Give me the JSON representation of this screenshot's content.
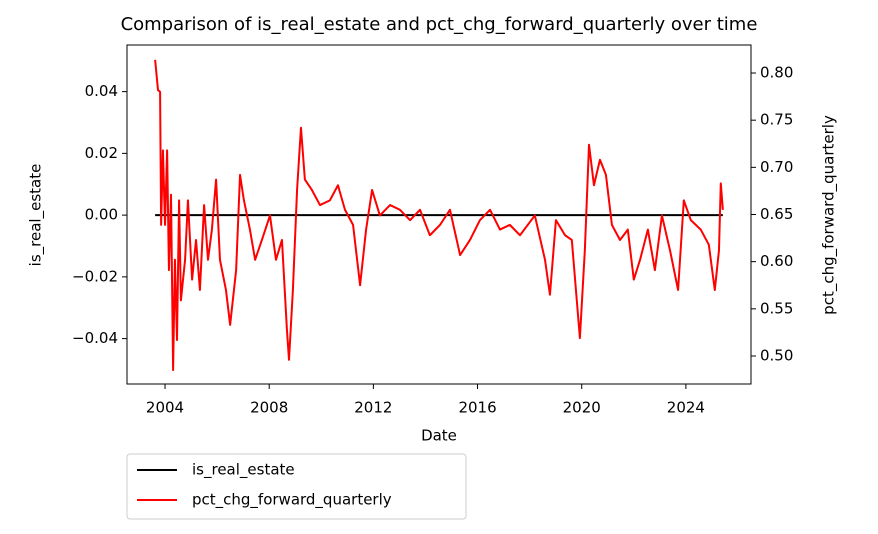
{
  "chart_data": {
    "type": "line",
    "title": "Comparison of is_real_estate and pct_chg_forward_quarterly over time",
    "xlabel": "Date",
    "ylabel": "is_real_estate",
    "y2label": "pct_chg_forward_quarterly",
    "y2label_color": "#ff0000",
    "xlim": [
      2002.54,
      2026.5
    ],
    "xticks": [
      2004,
      2008,
      2012,
      2016,
      2020,
      2024
    ],
    "ylim": [
      -0.0547,
      0.0551
    ],
    "yticks": [
      {
        "value": -0.04,
        "label": "−0.04"
      },
      {
        "value": -0.02,
        "label": "−0.02"
      },
      {
        "value": 0,
        "label": "0.00"
      },
      {
        "value": 0.02,
        "label": "0.02"
      },
      {
        "value": 0.04,
        "label": "0.04"
      }
    ],
    "y2lim": [
      0.4703,
      0.8297
    ],
    "y2ticks": [
      {
        "value": 0.5,
        "label": "0.50"
      },
      {
        "value": 0.55,
        "label": "0.55"
      },
      {
        "value": 0.6,
        "label": "0.60"
      },
      {
        "value": 0.65,
        "label": "0.65"
      },
      {
        "value": 0.7,
        "label": "0.70"
      },
      {
        "value": 0.75,
        "label": "0.75"
      },
      {
        "value": 0.8,
        "label": "0.80"
      }
    ],
    "legend": "below-left",
    "series": [
      {
        "name": "is_real_estate",
        "color": "#000000",
        "x": [
          2003.62,
          2025.42
        ],
        "values": [
          0,
          0
        ]
      },
      {
        "name": "pct_chg_forward_quarterly",
        "color": "#ff0000",
        "axis": "y2",
        "x": [
          2003.62,
          2003.73,
          2003.81,
          2003.85,
          2003.92,
          2004.0,
          2004.08,
          2004.15,
          2004.23,
          2004.31,
          2004.38,
          2004.46,
          2004.54,
          2004.61,
          2004.77,
          2004.88,
          2005.04,
          2005.19,
          2005.34,
          2005.5,
          2005.65,
          2005.8,
          2005.96,
          2006.11,
          2006.34,
          2006.5,
          2006.73,
          2006.88,
          2007.03,
          2007.26,
          2007.46,
          2007.72,
          2008.03,
          2008.26,
          2008.49,
          2008.68,
          2008.76,
          2008.91,
          2009.07,
          2009.22,
          2009.37,
          2009.64,
          2009.95,
          2010.33,
          2010.64,
          2010.91,
          2011.22,
          2011.49,
          2011.72,
          2011.95,
          2012.25,
          2012.64,
          2013.02,
          2013.41,
          2013.79,
          2014.17,
          2014.56,
          2014.94,
          2015.33,
          2015.71,
          2016.09,
          2016.48,
          2016.86,
          2017.24,
          2017.63,
          2018.2,
          2018.59,
          2018.78,
          2019.01,
          2019.36,
          2019.62,
          2019.93,
          2020.12,
          2020.28,
          2020.47,
          2020.7,
          2020.93,
          2021.16,
          2021.47,
          2021.77,
          2022.0,
          2022.24,
          2022.54,
          2022.81,
          2023.08,
          2023.39,
          2023.7,
          2023.92,
          2024.19,
          2024.57,
          2024.88,
          2025.11,
          2025.27,
          2025.34,
          2025.42
        ],
        "values": [
          0.814,
          0.782,
          0.78,
          0.639,
          0.718,
          0.639,
          0.718,
          0.591,
          0.671,
          0.485,
          0.602,
          0.517,
          0.665,
          0.559,
          0.602,
          0.665,
          0.581,
          0.623,
          0.57,
          0.66,
          0.602,
          0.634,
          0.687,
          0.602,
          0.57,
          0.533,
          0.591,
          0.692,
          0.665,
          0.634,
          0.602,
          0.623,
          0.649,
          0.602,
          0.623,
          0.528,
          0.496,
          0.57,
          0.676,
          0.742,
          0.687,
          0.676,
          0.66,
          0.665,
          0.681,
          0.655,
          0.639,
          0.575,
          0.634,
          0.676,
          0.649,
          0.66,
          0.655,
          0.644,
          0.655,
          0.628,
          0.639,
          0.655,
          0.607,
          0.623,
          0.644,
          0.655,
          0.634,
          0.639,
          0.628,
          0.649,
          0.602,
          0.565,
          0.644,
          0.628,
          0.623,
          0.519,
          0.612,
          0.724,
          0.681,
          0.708,
          0.692,
          0.639,
          0.623,
          0.634,
          0.581,
          0.602,
          0.634,
          0.591,
          0.649,
          0.612,
          0.57,
          0.665,
          0.644,
          0.634,
          0.618,
          0.57,
          0.612,
          0.683,
          0.655
        ]
      }
    ]
  }
}
